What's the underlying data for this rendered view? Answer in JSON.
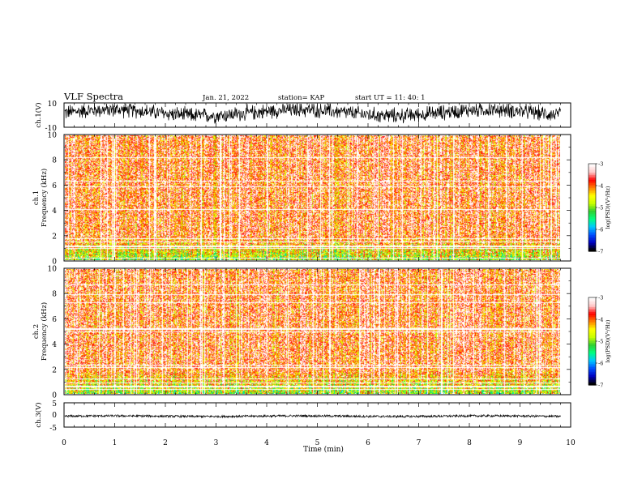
{
  "header": {
    "title": "VLF Spectra",
    "date": "Jan. 21, 2022",
    "station": "station= KAP",
    "start": "start UT =  11: 40: 1"
  },
  "colors": {
    "scale": [
      "#000000",
      "#0000c0",
      "#0050ff",
      "#00c8ff",
      "#00ff80",
      "#30d030",
      "#c8ff00",
      "#ffff00",
      "#ff8000",
      "#ff0000",
      "#ffc8c8",
      "#ffffff"
    ]
  },
  "chart_data": [
    {
      "type": "line",
      "name": "ch.1 waveform",
      "ylabel": "ch.1(V)",
      "ylim": [
        -10,
        10
      ],
      "yticks": [
        "10",
        "-10"
      ],
      "xlim": [
        0,
        10
      ],
      "level_range_v": [
        -4,
        8
      ],
      "data_end_min": 9.8
    },
    {
      "type": "heatmap",
      "name": "ch.1 spectrogram",
      "ylabel": "ch.1\nFrequency (kHz)",
      "ylim": [
        0,
        10
      ],
      "yticks": [
        "0",
        "2",
        "4",
        "6",
        "8",
        "10"
      ],
      "xlim": [
        0,
        10
      ],
      "data_end_min": 9.8,
      "colorbar": {
        "label": "log(PSD)(V²/Hz)",
        "range": [
          -7,
          -3
        ],
        "ticks": [
          "-3",
          "-4",
          "-5",
          "-6",
          "-7"
        ]
      },
      "dominant_log_psd": -3.8
    },
    {
      "type": "heatmap",
      "name": "ch.2 spectrogram",
      "ylabel": "ch.2\nFrequency (kHz)",
      "ylim": [
        0,
        10
      ],
      "yticks": [
        "0",
        "2",
        "4",
        "6",
        "8",
        "10"
      ],
      "xlim": [
        0,
        10
      ],
      "data_end_min": 9.8,
      "colorbar": {
        "label": "log(PSD)(V²/Hz)",
        "range": [
          -7,
          -3
        ],
        "ticks": [
          "-3",
          "-4",
          "-5",
          "-6",
          "-7"
        ]
      },
      "dominant_log_psd": -3.8
    },
    {
      "type": "line",
      "name": "ch.3 waveform",
      "ylabel": "ch.3(V)",
      "ylim": [
        -5,
        5
      ],
      "yticks": [
        "5",
        "0",
        "-5"
      ],
      "xlim": [
        0,
        10
      ],
      "level_range_v": [
        -0.8,
        -0.2
      ],
      "data_end_min": 9.8
    }
  ],
  "x_axis": {
    "label": "Time (min)",
    "ticks": [
      "0",
      "1",
      "2",
      "3",
      "4",
      "5",
      "6",
      "7",
      "8",
      "9",
      "10"
    ]
  }
}
